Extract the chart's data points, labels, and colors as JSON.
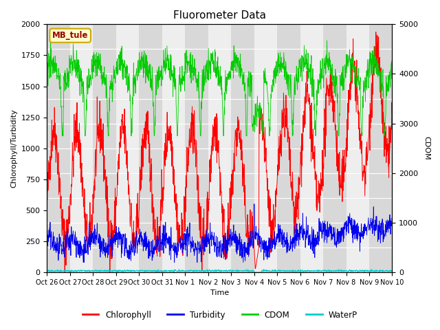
{
  "title": "Fluorometer Data",
  "xlabel": "Time",
  "ylabel_left": "Chlorophyll/Turbidity",
  "ylabel_right": "CDOM",
  "ylim_left": [
    0,
    2000
  ],
  "ylim_right": [
    0,
    5000
  ],
  "annotation_text": "MB_tule",
  "annotation_color": "#990000",
  "annotation_bg": "#ffffcc",
  "annotation_border": "#ccaa00",
  "background_color": "#ffffff",
  "plot_bg_light": "#eeeeee",
  "plot_bg_dark": "#d8d8d8",
  "grid_color": "#ffffff",
  "series": {
    "chlorophyll": {
      "color": "#ff0000",
      "lw": 0.7
    },
    "turbidity": {
      "color": "#0000ee",
      "lw": 0.6
    },
    "cdom": {
      "color": "#00cc00",
      "lw": 0.6
    },
    "waterp": {
      "color": "#00cccc",
      "lw": 0.7
    }
  },
  "legend_items": [
    {
      "label": "Chlorophyll",
      "color": "#ff0000"
    },
    {
      "label": "Turbidity",
      "color": "#0000ee"
    },
    {
      "label": "CDOM",
      "color": "#00cc00"
    },
    {
      "label": "WaterP",
      "color": "#00cccc"
    }
  ],
  "xtick_labels": [
    "Oct 26",
    "Oct 27",
    "Oct 28",
    "Oct 29",
    "Oct 30",
    "Oct 31",
    "Nov 1",
    "Nov 2",
    "Nov 3",
    "Nov 4",
    "Nov 5",
    "Nov 6",
    "Nov 7",
    "Nov 8",
    "Nov 9",
    "Nov 10"
  ],
  "title_fontsize": 11,
  "axis_label_fontsize": 8,
  "tick_fontsize": 8
}
